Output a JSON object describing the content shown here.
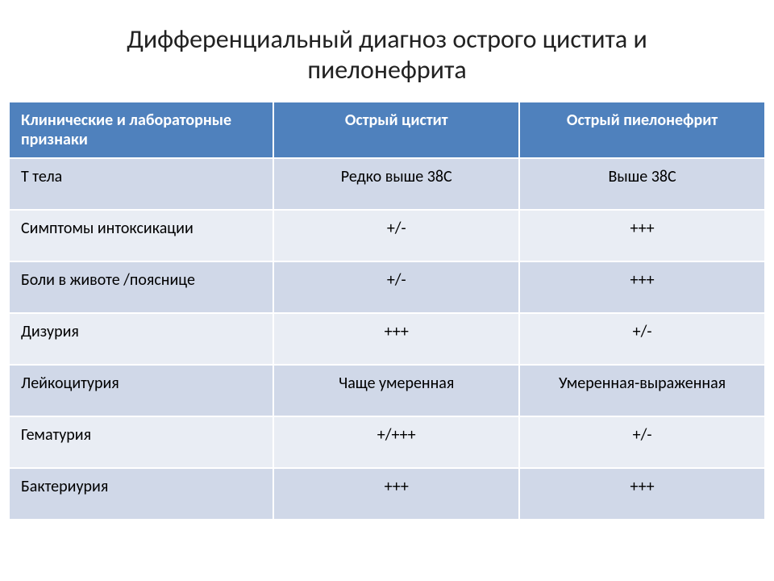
{
  "title": "Дифференциальный диагноз острого цистита и пиелонефрита",
  "table": {
    "type": "table",
    "header_bg": "#4f81bd",
    "header_fg": "#ffffff",
    "band_a_bg": "#d0d8e8",
    "band_b_bg": "#e9edf4",
    "border_color": "#ffffff",
    "font_family": "Calibri",
    "header_fontsize": 20,
    "cell_fontsize": 20,
    "title_fontsize": 32,
    "columns": [
      {
        "label": "Клинические и лабораторные признаки",
        "align": "left",
        "width_pct": 35
      },
      {
        "label": "Острый цистит",
        "align": "center",
        "width_pct": 32.5
      },
      {
        "label": "Острый пиелонефрит",
        "align": "center",
        "width_pct": 32.5
      }
    ],
    "rows": [
      {
        "band": "a",
        "cells": [
          "Т тела",
          "Редко выше 38С",
          "Выше 38С"
        ]
      },
      {
        "band": "b",
        "cells": [
          "Симптомы интоксикации",
          "+/-",
          "+++"
        ]
      },
      {
        "band": "a",
        "cells": [
          "Боли в животе /пояснице",
          "+/-",
          "+++"
        ]
      },
      {
        "band": "b",
        "cells": [
          "Дизурия",
          "+++",
          "+/-"
        ]
      },
      {
        "band": "a",
        "cells": [
          "Лейкоцитурия",
          "Чаще умеренная",
          "Умеренная-выраженная"
        ]
      },
      {
        "band": "b",
        "cells": [
          "Гематурия",
          "+/+++",
          "+/-"
        ]
      },
      {
        "band": "a",
        "cells": [
          "Бактериурия",
          "+++",
          "+++"
        ]
      }
    ]
  }
}
